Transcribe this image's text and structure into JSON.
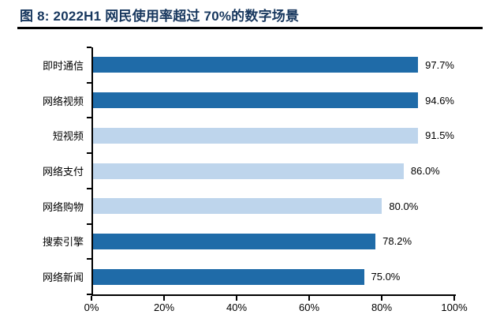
{
  "header": {
    "title": "图 8: 2022H1 网民使用率超过 70%的数字场景"
  },
  "chart_data": {
    "type": "bar",
    "orientation": "horizontal",
    "title": "图 8: 2022H1 网民使用率超过 70%的数字场景",
    "categories": [
      "即时通信",
      "网络视频",
      "短视频",
      "网络支付",
      "网络购物",
      "搜索引擎",
      "网络新闻"
    ],
    "values": [
      97.7,
      94.6,
      91.5,
      86.0,
      80.0,
      78.2,
      75.0
    ],
    "value_labels": [
      "97.7%",
      "94.6%",
      "91.5%",
      "86.0%",
      "80.0%",
      "78.2%",
      "75.0%"
    ],
    "bar_color_keys": [
      "dark",
      "dark",
      "light",
      "light",
      "light",
      "dark",
      "dark"
    ],
    "palette": {
      "dark": "#1F6BA8",
      "light": "#BED5EC"
    },
    "x_ticks": [
      "0%",
      "20%",
      "40%",
      "60%",
      "80%",
      "100%"
    ],
    "x_tick_values": [
      0,
      20,
      40,
      60,
      80,
      100
    ],
    "xlim": [
      0,
      100
    ],
    "grid": false,
    "legend": null,
    "axis_color": "#000000",
    "title_color": "#17375E"
  }
}
